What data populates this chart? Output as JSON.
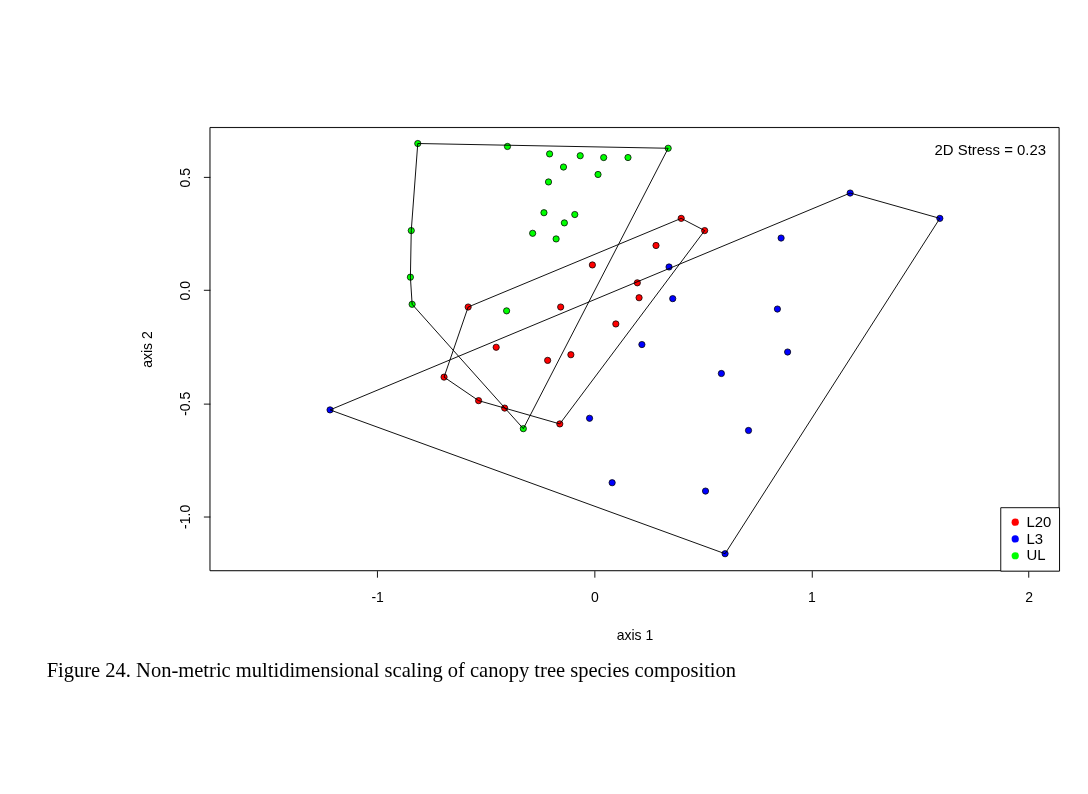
{
  "chart_data": {
    "type": "scatter",
    "xlabel": "axis 1",
    "ylabel": "axis 2",
    "xlim": [
      -1.77,
      2.14
    ],
    "ylim": [
      -1.24,
      0.72
    ],
    "xticks": [
      -1,
      0,
      1,
      2
    ],
    "yticks": [
      {
        "value": -1,
        "label": "-1.0"
      },
      -0.5,
      {
        "value": 0,
        "label": "0.0"
      },
      0.5
    ],
    "grid": false,
    "legend": "bottom right",
    "marker": "circle",
    "annotations": [
      "2D Stress = 0.23",
      "Figure 24. Non-metric multidimensional scaling of canopy tree species composition"
    ],
    "series": [
      {
        "name": "L20",
        "color": "#ff0000",
        "x": [
          0.4,
          0.508,
          0.284,
          -0.009,
          0.198,
          0.206,
          -0.581,
          -0.155,
          0.099,
          -0.452,
          -0.108,
          -0.215,
          -0.692,
          -0.533,
          -0.413,
          -0.159
        ],
        "values": [
          0.318,
          0.264,
          0.198,
          0.112,
          0.033,
          -0.033,
          -0.074,
          -0.074,
          -0.149,
          -0.252,
          -0.285,
          -0.31,
          -0.384,
          -0.488,
          -0.521,
          -0.591
        ]
      },
      {
        "name": "L3",
        "color": "#0000ff",
        "x": [
          1.178,
          1.591,
          0.86,
          0.344,
          0.361,
          0.843,
          0.89,
          0.219,
          0.585,
          -1.217,
          -0.022,
          0.71,
          0.082,
          0.512,
          0.602
        ],
        "values": [
          0.43,
          0.318,
          0.231,
          0.103,
          -0.037,
          -0.083,
          -0.273,
          -0.24,
          -0.368,
          -0.529,
          -0.566,
          -0.62,
          -0.851,
          -0.888,
          -1.165
        ]
      },
      {
        "name": "UL",
        "color": "#00ff00",
        "x": [
          -0.813,
          -0.4,
          0.34,
          -0.206,
          -0.065,
          0.043,
          0.155,
          -0.142,
          0.017,
          -0.211,
          -0.232,
          -0.09,
          -0.138,
          -0.284,
          -0.176,
          -0.843,
          -0.847,
          -0.839,
          -0.404,
          -0.327
        ],
        "values": [
          0.649,
          0.636,
          0.628,
          0.603,
          0.595,
          0.587,
          0.587,
          0.545,
          0.512,
          0.479,
          0.343,
          0.335,
          0.298,
          0.252,
          0.227,
          0.264,
          0.058,
          -0.062,
          -0.091,
          -0.612
        ]
      },
      {
        "type": "line",
        "color": "#000000",
        "marker": "none",
        "x": [
          -0.847,
          -0.843,
          -0.813,
          0.34
        ],
        "values": [
          0.058,
          0.264,
          0.649,
          0.628
        ]
      },
      {
        "type": "line",
        "color": "#000000",
        "marker": "none",
        "x": [
          -0.847,
          -0.839,
          -0.327,
          0.34
        ],
        "values": [
          0.058,
          -0.062,
          -0.612,
          0.628
        ]
      },
      {
        "type": "line",
        "color": "#000000",
        "marker": "none",
        "x": [
          -0.692,
          -0.581,
          0.4,
          0.508
        ],
        "values": [
          -0.384,
          -0.074,
          0.318,
          0.264
        ]
      },
      {
        "type": "line",
        "color": "#000000",
        "marker": "none",
        "x": [
          -0.692,
          -0.533,
          -0.413,
          -0.159,
          0.508
        ],
        "values": [
          -0.384,
          -0.488,
          -0.521,
          -0.591,
          0.264
        ]
      },
      {
        "type": "line",
        "color": "#000000",
        "marker": "none",
        "x": [
          -1.217,
          1.178,
          1.591
        ],
        "values": [
          -0.529,
          0.43,
          0.318
        ]
      },
      {
        "type": "line",
        "color": "#000000",
        "marker": "none",
        "x": [
          -1.217,
          0.602,
          1.591
        ],
        "values": [
          -0.529,
          -1.165,
          0.318
        ]
      }
    ]
  }
}
